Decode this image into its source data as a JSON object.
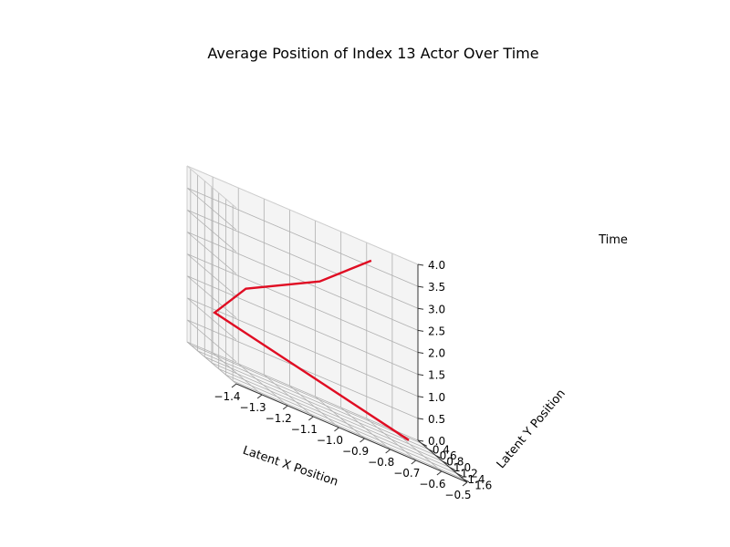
{
  "chart_data": {
    "type": "line",
    "projection": "3d",
    "title": "Average Position of Index 13 Actor Over Time",
    "xlabel": "Latent X Position",
    "ylabel": "Latent Y Position",
    "zlabel": "Time",
    "xlim": [
      -1.4,
      -0.5
    ],
    "ylim": [
      0.3,
      1.7
    ],
    "zlim": [
      0.0,
      4.0
    ],
    "x_ticks": [
      "−1.4",
      "−1.3",
      "−1.2",
      "−1.1",
      "−1.0",
      "−0.9",
      "−0.8",
      "−0.7",
      "−0.6",
      "−0.5"
    ],
    "y_ticks": [
      "0.4",
      "0.6",
      "0.8",
      "1.0",
      "1.2",
      "1.4",
      "1.6"
    ],
    "z_ticks": [
      "0.0",
      "0.5",
      "1.0",
      "1.5",
      "2.0",
      "2.5",
      "3.0",
      "3.5",
      "4.0"
    ],
    "grid": true,
    "series": [
      {
        "color": "#e00d23",
        "x": [
          -0.57,
          -1.32,
          -1.26,
          -1.02,
          -0.83
        ],
        "y": [
          0.55,
          0.5,
          0.95,
          1.3,
          1.38
        ],
        "z": [
          0,
          1,
          2,
          3,
          4
        ]
      }
    ]
  }
}
